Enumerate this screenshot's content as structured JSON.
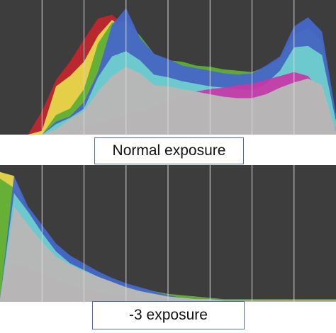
{
  "captions": {
    "normal": "Normal exposure",
    "minus3": "-3 exposure"
  },
  "colors": {
    "background": "#3d3d3d",
    "gridline": "#d8d8d8",
    "luminance": "#b8b8b8",
    "red": "#c0272d",
    "yellow": "#e7d84a",
    "green": "#5fae35",
    "cyan": "#6fd0d0",
    "blue": "#4567c8",
    "magenta": "#c53aa8"
  },
  "histograms": [
    {
      "name": "Normal exposure",
      "curves": {
        "luminance": [
          0,
          0,
          0,
          0,
          0.04,
          0.12,
          0.18,
          0.33,
          0.45,
          0.52,
          0.47,
          0.38,
          0.37,
          0.35,
          0.33,
          0.31,
          0.29,
          0.28,
          0.28,
          0.31,
          0.36,
          0.4,
          0.43,
          0.38,
          0.02
        ],
        "yellow": [
          0,
          0,
          0,
          0.03,
          0.37,
          0.45,
          0.56,
          0.76,
          0.88,
          0.8,
          0.62,
          0.55,
          0.52,
          0.48,
          0.47,
          0.46,
          0.45,
          0.44,
          0.44,
          0.47,
          0.52,
          0.58,
          0.7,
          0.52,
          0.08
        ],
        "red": [
          0,
          0,
          0,
          0.18,
          0.42,
          0.56,
          0.73,
          0.89,
          0.92,
          0.83,
          0.67,
          0.6,
          0.56,
          0.53,
          0.5,
          0.49,
          0.49,
          0.48,
          0.48,
          0.52,
          0.56,
          0.62,
          0.78,
          0.6,
          0.06
        ],
        "green": [
          0,
          0,
          0,
          0,
          0.15,
          0.2,
          0.35,
          0.7,
          0.86,
          0.87,
          0.76,
          0.62,
          0.57,
          0.56,
          0.53,
          0.52,
          0.5,
          0.49,
          0.48,
          0.52,
          0.58,
          0.76,
          0.82,
          0.72,
          0.12
        ],
        "cyan": [
          0,
          0,
          0,
          0,
          0.08,
          0.13,
          0.2,
          0.44,
          0.6,
          0.64,
          0.57,
          0.46,
          0.44,
          0.41,
          0.39,
          0.37,
          0.36,
          0.35,
          0.34,
          0.39,
          0.49,
          0.67,
          0.68,
          0.61,
          0.1
        ],
        "blue": [
          0,
          0,
          0,
          0,
          0.1,
          0.14,
          0.25,
          0.48,
          0.84,
          0.97,
          0.74,
          0.62,
          0.58,
          0.53,
          0.51,
          0.49,
          0.47,
          0.46,
          0.47,
          0.53,
          0.6,
          0.83,
          0.9,
          0.79,
          0.16
        ],
        "magenta": [
          0,
          0,
          0,
          0,
          0.02,
          0.03,
          0.06,
          0.09,
          0.12,
          0.16,
          0.18,
          0.22,
          0.26,
          0.3,
          0.33,
          0.35,
          0.36,
          0.38,
          0.39,
          0.42,
          0.45,
          0.48,
          0.45,
          0.32,
          0.03
        ]
      }
    },
    {
      "name": "-3 exposure",
      "curves": {
        "luminance": [
          0.02,
          0.72,
          0.58,
          0.45,
          0.34,
          0.28,
          0.23,
          0.19,
          0.15,
          0.11,
          0.08,
          0.06,
          0.04,
          0.03,
          0.02,
          0.02,
          0.01,
          0.01,
          0.01,
          0.01,
          0.01,
          0.01,
          0.01,
          0.01,
          0.01
        ],
        "yellow": [
          0.98,
          0.95,
          0.66,
          0.47,
          0.34,
          0.27,
          0.22,
          0.18,
          0.13,
          0.1,
          0.08,
          0.06,
          0.04,
          0.03,
          0.02,
          0.02,
          0.01,
          0.01,
          0.01,
          0.01,
          0.01,
          0.01,
          0.01,
          0.01,
          0.01
        ],
        "red": [
          0.9,
          0.83,
          0.69,
          0.52,
          0.37,
          0.29,
          0.23,
          0.18,
          0.13,
          0.11,
          0.09,
          0.08,
          0.06,
          0.05,
          0.04,
          0.03,
          0.02,
          0.02,
          0.02,
          0.02,
          0.02,
          0.02,
          0.02,
          0.02,
          0.02
        ],
        "green": [
          0.93,
          0.86,
          0.69,
          0.53,
          0.38,
          0.3,
          0.24,
          0.19,
          0.15,
          0.12,
          0.1,
          0.08,
          0.06,
          0.05,
          0.04,
          0.03,
          0.02,
          0.02,
          0.02,
          0.02,
          0.02,
          0.02,
          0.02,
          0.02,
          0.02
        ],
        "cyan": [
          0.02,
          0.82,
          0.68,
          0.52,
          0.38,
          0.29,
          0.24,
          0.19,
          0.14,
          0.11,
          0.08,
          0.06,
          0.04,
          0.03,
          0.02,
          0.02,
          0.01,
          0.01,
          0.01,
          0.01,
          0.01,
          0.01,
          0.01,
          0.01,
          0.01
        ],
        "blue": [
          0.02,
          0.95,
          0.72,
          0.58,
          0.44,
          0.35,
          0.29,
          0.23,
          0.18,
          0.14,
          0.11,
          0.08,
          0.05,
          0.03,
          0.02,
          0.02,
          0.01,
          0.01,
          0.01,
          0.01,
          0.01,
          0.01,
          0.01,
          0.01,
          0.01
        ],
        "magenta": [
          0.02,
          0.3,
          0.26,
          0.2,
          0.17,
          0.13,
          0.1,
          0.08,
          0.06,
          0.05,
          0.04,
          0.03,
          0.02,
          0.01,
          0.01,
          0.01,
          0.01,
          0.01,
          0.01,
          0.01,
          0.01,
          0.01,
          0.01,
          0.01,
          0.01
        ]
      }
    }
  ]
}
